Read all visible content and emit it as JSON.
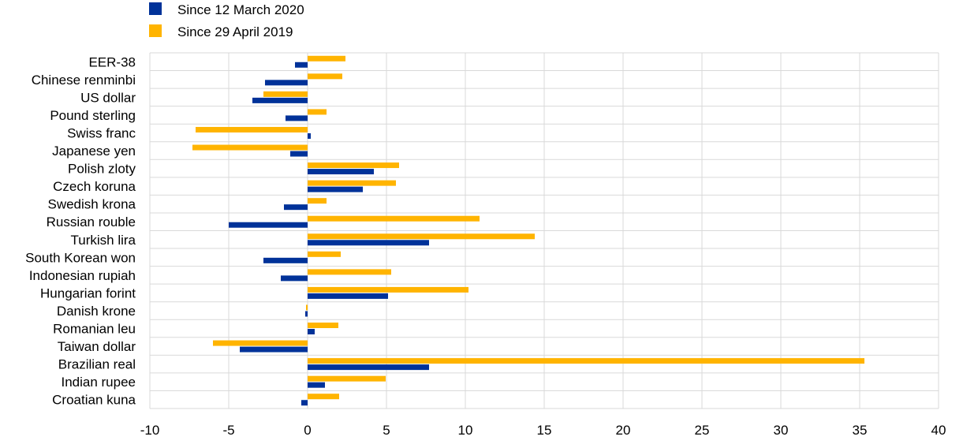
{
  "chart_data": {
    "type": "bar",
    "orientation": "horizontal",
    "categories": [
      "EER-38",
      "Chinese renminbi",
      "US dollar",
      "Pound sterling",
      "Swiss franc",
      "Japanese yen",
      "Polish zloty",
      "Czech koruna",
      "Swedish krona",
      "Russian rouble",
      "Turkish lira",
      "South Korean won",
      "Indonesian rupiah",
      "Hungarian forint",
      "Danish krone",
      "Romanian leu",
      "Taiwan dollar",
      "Brazilian real",
      "Indian rupee",
      "Croatian kuna"
    ],
    "series": [
      {
        "name": "Since 12 March 2020",
        "color": "#003299",
        "values": [
          -0.8,
          -2.7,
          -3.5,
          -1.4,
          0.2,
          -1.1,
          4.2,
          3.5,
          -1.5,
          -5.0,
          7.7,
          -2.8,
          -1.7,
          5.1,
          -0.15,
          0.45,
          -4.3,
          7.7,
          1.1,
          -0.4
        ]
      },
      {
        "name": "Since 29 April 2019",
        "color": "#ffb400",
        "values": [
          2.4,
          2.2,
          -2.8,
          1.2,
          -7.1,
          -7.3,
          5.8,
          5.6,
          1.2,
          10.9,
          14.4,
          2.1,
          5.3,
          10.2,
          -0.1,
          1.95,
          -6.0,
          35.3,
          4.95,
          2.0
        ]
      }
    ],
    "xlim": [
      -10,
      40
    ],
    "xticks": [
      "-10",
      "-5",
      "0",
      "5",
      "10",
      "15",
      "20",
      "25",
      "30",
      "35",
      "40"
    ],
    "grid": true,
    "legend_position": "top-left"
  }
}
